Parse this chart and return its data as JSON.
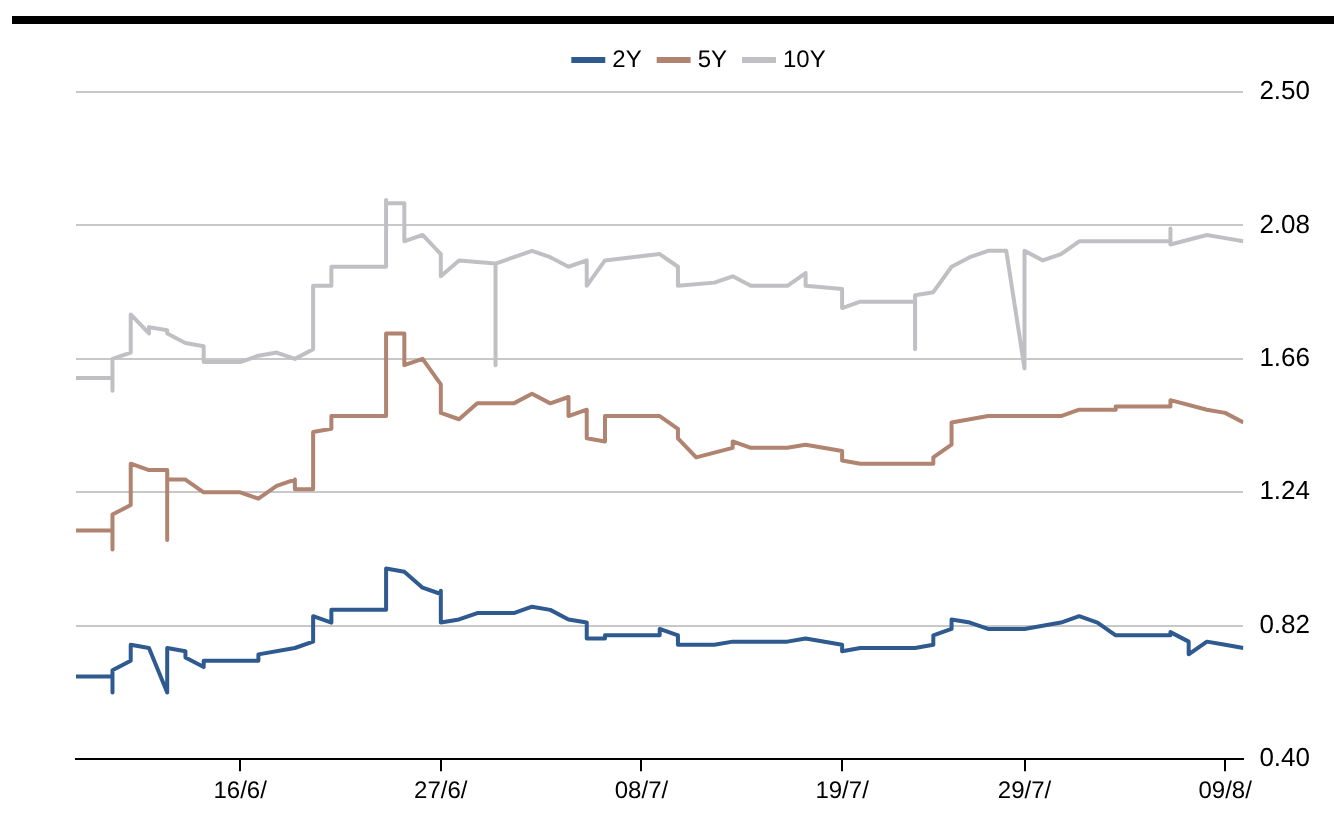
{
  "chart_data": {
    "type": "line",
    "legend": "top",
    "grid": "y",
    "marker": "none",
    "line_style": "solid",
    "xlim": [
      "--06-07",
      "--08-10"
    ],
    "xticks": [
      {
        "value": "--06-16",
        "label": "16/6/"
      },
      {
        "value": "--06-27",
        "label": "27/6/"
      },
      {
        "value": "--07-08",
        "label": "08/7/"
      },
      {
        "value": "--07-19",
        "label": "19/7/"
      },
      {
        "value": "--07-29",
        "label": "29/7/"
      },
      {
        "value": "--08-09",
        "label": "09/8/"
      }
    ],
    "ylim": [
      0.4,
      2.5
    ],
    "yticks": [
      {
        "value": 0.4,
        "label": "0.40"
      },
      {
        "value": 0.82,
        "label": "0.82"
      },
      {
        "value": 1.24,
        "label": "1.24"
      },
      {
        "value": 1.66,
        "label": "1.66"
      },
      {
        "value": 2.08,
        "label": "2.08"
      },
      {
        "value": 2.5,
        "label": "2.50"
      }
    ],
    "series": [
      {
        "name": "2Y",
        "color": "#2e5a8f",
        "x": [
          "--06-07",
          "--06-09",
          "--06-09",
          "--06-09",
          "--06-10",
          "--06-10",
          "--06-11",
          "--06-12",
          "--06-12",
          "--06-13",
          "--06-13",
          "--06-14",
          "--06-14",
          "--06-17",
          "--06-17",
          "--06-19",
          "--06-20",
          "--06-20",
          "--06-21",
          "--06-21",
          "--06-24",
          "--06-24",
          "--06-25",
          "--06-26",
          "--06-26",
          "--06-27",
          "--06-27",
          "--06-27",
          "--06-28",
          "--06-29",
          "--07-01",
          "--07-02",
          "--07-03",
          "--07-04",
          "--07-05",
          "--07-05",
          "--07-06",
          "--07-06",
          "--07-09",
          "--07-09",
          "--07-10",
          "--07-10",
          "--07-12",
          "--07-13",
          "--07-16",
          "--07-17",
          "--07-19",
          "--07-19",
          "--07-20",
          "--07-23",
          "--07-24",
          "--07-24",
          "--07-25",
          "--07-25",
          "--07-26",
          "--07-27",
          "--07-29",
          "--07-30",
          "--07-31",
          "--08-01",
          "--08-02",
          "--08-03",
          "--08-06",
          "--08-06",
          "--08-07",
          "--08-07",
          "--08-08",
          "--08-09",
          "--08-10"
        ],
        "values": [
          0.66,
          0.66,
          0.61,
          0.68,
          0.71,
          0.76,
          0.75,
          0.61,
          0.75,
          0.74,
          0.72,
          0.69,
          0.71,
          0.71,
          0.73,
          0.75,
          0.77,
          0.85,
          0.83,
          0.87,
          0.87,
          1.0,
          0.99,
          0.94,
          0.94,
          0.92,
          0.93,
          0.83,
          0.84,
          0.86,
          0.86,
          0.88,
          0.87,
          0.84,
          0.83,
          0.78,
          0.78,
          0.79,
          0.79,
          0.81,
          0.79,
          0.76,
          0.76,
          0.77,
          0.77,
          0.78,
          0.76,
          0.74,
          0.75,
          0.75,
          0.76,
          0.79,
          0.81,
          0.84,
          0.83,
          0.81,
          0.81,
          0.82,
          0.83,
          0.85,
          0.83,
          0.79,
          0.79,
          0.8,
          0.77,
          0.73,
          0.77,
          0.76,
          0.75
        ]
      },
      {
        "name": "5Y",
        "color": "#b08470",
        "x": [
          "--06-07",
          "--06-09",
          "--06-09",
          "--06-09",
          "--06-10",
          "--06-10",
          "--06-11",
          "--06-12",
          "--06-12",
          "--06-12",
          "--06-13",
          "--06-14",
          "--06-16",
          "--06-17",
          "--06-18",
          "--06-19",
          "--06-19",
          "--06-20",
          "--06-20",
          "--06-21",
          "--06-21",
          "--06-24",
          "--06-24",
          "--06-25",
          "--06-25",
          "--06-26",
          "--06-27",
          "--06-27",
          "--06-28",
          "--06-29",
          "--07-01",
          "--07-02",
          "--07-03",
          "--07-04",
          "--07-04",
          "--07-05",
          "--07-05",
          "--07-06",
          "--07-06",
          "--07-09",
          "--07-10",
          "--07-10",
          "--07-11",
          "--07-13",
          "--07-13",
          "--07-14",
          "--07-16",
          "--07-17",
          "--07-19",
          "--07-19",
          "--07-20",
          "--07-24",
          "--07-24",
          "--07-25",
          "--07-25",
          "--07-27",
          "--07-31",
          "--08-01",
          "--08-03",
          "--08-03",
          "--08-06",
          "--08-06",
          "--08-08",
          "--08-09",
          "--08-10"
        ],
        "values": [
          1.12,
          1.12,
          1.06,
          1.17,
          1.2,
          1.33,
          1.31,
          1.31,
          1.09,
          1.28,
          1.28,
          1.24,
          1.24,
          1.22,
          1.26,
          1.28,
          1.25,
          1.25,
          1.43,
          1.44,
          1.48,
          1.48,
          1.74,
          1.74,
          1.64,
          1.66,
          1.58,
          1.49,
          1.47,
          1.52,
          1.52,
          1.55,
          1.52,
          1.54,
          1.48,
          1.5,
          1.41,
          1.4,
          1.48,
          1.48,
          1.44,
          1.41,
          1.35,
          1.38,
          1.4,
          1.38,
          1.38,
          1.39,
          1.37,
          1.34,
          1.33,
          1.33,
          1.35,
          1.39,
          1.46,
          1.48,
          1.48,
          1.5,
          1.5,
          1.51,
          1.51,
          1.53,
          1.5,
          1.49,
          1.46
        ]
      },
      {
        "name": "10Y",
        "color": "#c0c0c4",
        "x": [
          "--06-07",
          "--06-09",
          "--06-09",
          "--06-09",
          "--06-10",
          "--06-10",
          "--06-11",
          "--06-11",
          "--06-12",
          "--06-12",
          "--06-13",
          "--06-14",
          "--06-14",
          "--06-16",
          "--06-17",
          "--06-18",
          "--06-19",
          "--06-20",
          "--06-20",
          "--06-21",
          "--06-21",
          "--06-24",
          "--06-24",
          "--06-24",
          "--06-25",
          "--06-25",
          "--06-26",
          "--06-27",
          "--06-27",
          "--06-28",
          "--06-30",
          "--06-30",
          "--06-30",
          "--06-30",
          "--07-02",
          "--07-03",
          "--07-04",
          "--07-05",
          "--07-05",
          "--07-06",
          "--07-09",
          "--07-10",
          "--07-10",
          "--07-12",
          "--07-13",
          "--07-14",
          "--07-16",
          "--07-17",
          "--07-17",
          "--07-19",
          "--07-19",
          "--07-20",
          "--07-23",
          "--07-23",
          "--07-23",
          "--07-23",
          "--07-24",
          "--07-25",
          "--07-26",
          "--07-27",
          "--07-28",
          "--07-29",
          "--07-29",
          "--07-30",
          "--07-31",
          "--08-01",
          "--08-03",
          "--08-06",
          "--08-06",
          "--08-06",
          "--08-08",
          "--08-09",
          "--08-10"
        ],
        "values": [
          1.6,
          1.6,
          1.56,
          1.66,
          1.68,
          1.8,
          1.74,
          1.76,
          1.75,
          1.74,
          1.71,
          1.7,
          1.65,
          1.65,
          1.67,
          1.68,
          1.66,
          1.69,
          1.89,
          1.89,
          1.95,
          1.95,
          2.16,
          2.15,
          2.15,
          2.03,
          2.05,
          1.99,
          1.92,
          1.97,
          1.96,
          1.64,
          1.64,
          1.96,
          2.0,
          1.98,
          1.95,
          1.97,
          1.89,
          1.97,
          1.99,
          1.95,
          1.89,
          1.9,
          1.92,
          1.89,
          1.89,
          1.93,
          1.89,
          1.88,
          1.82,
          1.84,
          1.84,
          1.69,
          1.69,
          1.86,
          1.87,
          1.95,
          1.98,
          2.0,
          2.0,
          1.63,
          2.0,
          1.97,
          1.99,
          2.03,
          2.03,
          2.03,
          2.07,
          2.02,
          2.05,
          2.04,
          2.03
        ]
      }
    ]
  }
}
